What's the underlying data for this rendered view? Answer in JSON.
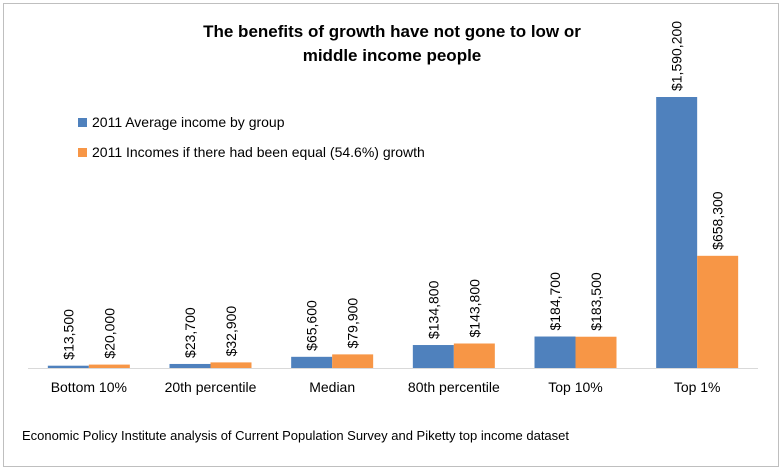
{
  "title_lines": [
    "The benefits of growth have not gone to low or",
    "middle income people"
  ],
  "source": "Economic Policy Institute analysis of Current Population Survey and Piketty top income dataset",
  "colors": {
    "series1": "#4f81bd",
    "series2": "#f79646",
    "axis": "#d9d9d9"
  },
  "chart_data": {
    "type": "bar",
    "title": "The benefits of growth have not gone to low or middle income people",
    "xlabel": "",
    "ylabel": "",
    "categories": [
      "Bottom 10%",
      "20th percentile",
      "Median",
      "80th percentile",
      "Top 10%",
      "Top 1%"
    ],
    "series": [
      {
        "name": "2011 Average income by group",
        "values": [
          13500,
          23700,
          65600,
          134800,
          184700,
          1590200
        ],
        "labels": [
          "$13,500",
          "$23,700",
          "$65,600",
          "$134,800",
          "$184,700",
          "$1,590,200"
        ]
      },
      {
        "name": "2011 Incomes if there had been equal (54.6%) growth",
        "values": [
          20000,
          32900,
          79900,
          143800,
          183500,
          658300
        ],
        "labels": [
          "$20,000",
          "$32,900",
          "$79,900",
          "$143,800",
          "$183,500",
          "$658,300"
        ]
      }
    ],
    "ylim": [
      0,
      1590200
    ],
    "grid": false,
    "legend": "top-left"
  }
}
